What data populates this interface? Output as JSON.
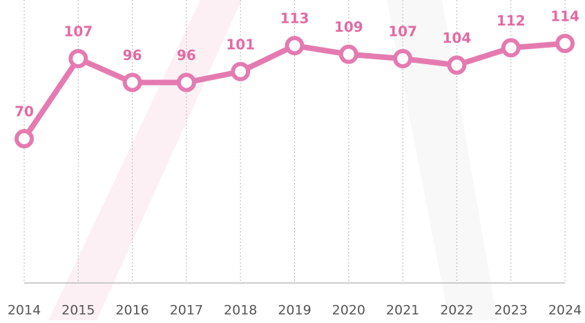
{
  "chart_data": {
    "type": "line",
    "categories": [
      "2014",
      "2015",
      "2016",
      "2017",
      "2018",
      "2019",
      "2020",
      "2021",
      "2022",
      "2023",
      "2024"
    ],
    "values": [
      70,
      107,
      96,
      96,
      101,
      113,
      109,
      107,
      104,
      112,
      114
    ],
    "color": "#e47bb0",
    "label_color": "#e36aa3",
    "grid": true
  }
}
